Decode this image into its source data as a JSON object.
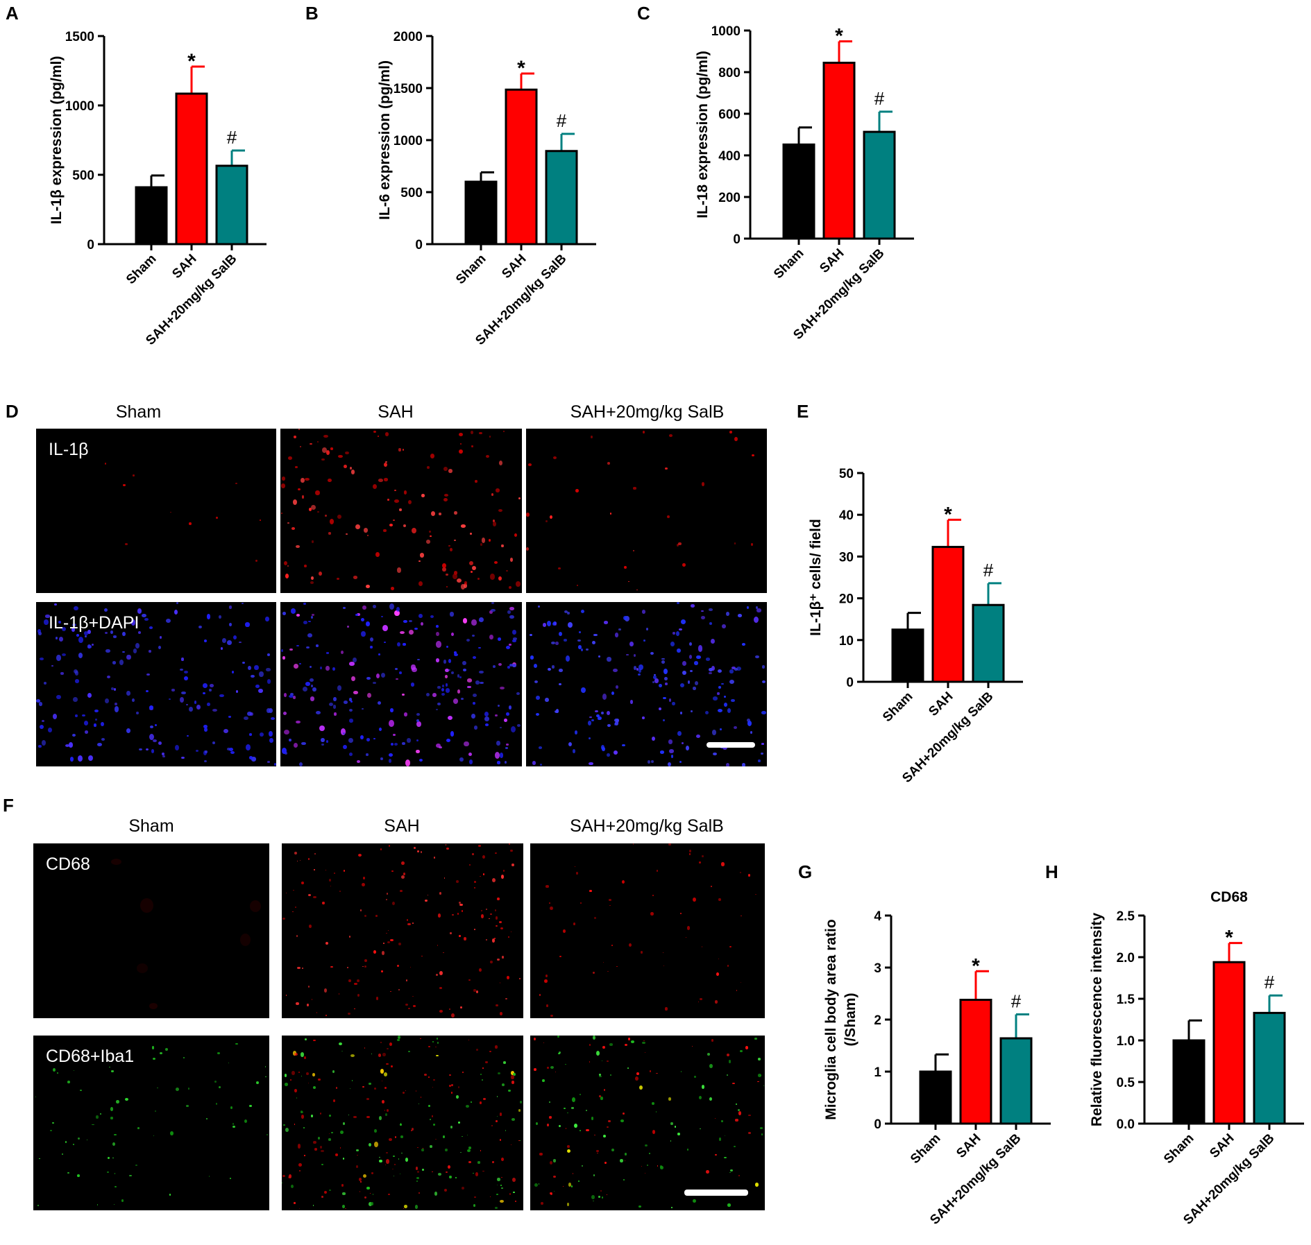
{
  "panel_letters": {
    "A": "A",
    "B": "B",
    "C": "C",
    "D": "D",
    "E": "E",
    "F": "F",
    "G": "G",
    "H": "H"
  },
  "colors": {
    "sham": "#000000",
    "sah": "#ff0000",
    "salb": "#008080",
    "salb_err": "#008080",
    "sah_err": "#ff0000"
  },
  "chart_data": [
    {
      "id": "A",
      "type": "bar",
      "categories": [
        "Sham",
        "SAH",
        "SAH+20mg/kg SalB"
      ],
      "values": [
        410,
        1085,
        565
      ],
      "errors": [
        85,
        195,
        110
      ],
      "ylabel": "IL-1β expression (pg/ml)",
      "ylim": [
        0,
        1500
      ],
      "yticks": [
        0,
        500,
        1000,
        1500
      ],
      "annotations": [
        "",
        "*",
        "#"
      ]
    },
    {
      "id": "B",
      "type": "bar",
      "categories": [
        "Sham",
        "SAH",
        "SAH+20mg/kg SalB"
      ],
      "values": [
        600,
        1485,
        895
      ],
      "errors": [
        90,
        155,
        165
      ],
      "ylabel": "IL-6 expression (pg/ml)",
      "ylim": [
        0,
        2000
      ],
      "yticks": [
        0,
        500,
        1000,
        1500,
        2000
      ],
      "annotations": [
        "",
        "*",
        "#"
      ]
    },
    {
      "id": "C",
      "type": "bar",
      "categories": [
        "Sham",
        "SAH",
        "SAH+20mg/kg SalB"
      ],
      "values": [
        452,
        845,
        513
      ],
      "errors": [
        82,
        103,
        97
      ],
      "ylabel": "IL-18 expression (pg/ml)",
      "ylim": [
        0,
        1000
      ],
      "yticks": [
        0,
        200,
        400,
        600,
        800,
        1000
      ],
      "annotations": [
        "",
        "*",
        "#"
      ]
    },
    {
      "id": "E",
      "type": "bar",
      "categories": [
        "Sham",
        "SAH",
        "SAH+20mg/kg SalB"
      ],
      "values": [
        12.5,
        32.3,
        18.4
      ],
      "errors": [
        4,
        6.5,
        5.2
      ],
      "ylabel": "IL-1β⁺ cells/ field",
      "ylim": [
        0,
        50
      ],
      "yticks": [
        0,
        10,
        20,
        30,
        40,
        50
      ],
      "annotations": [
        "",
        "*",
        "#"
      ]
    },
    {
      "id": "G",
      "type": "bar",
      "categories": [
        "Sham",
        "SAH",
        "SAH+20mg/kg SalB"
      ],
      "values": [
        1.0,
        2.38,
        1.64
      ],
      "errors": [
        0.33,
        0.55,
        0.46
      ],
      "ylabel": "Microglia cell body area ratio",
      "ylabel2": "(/Sham)",
      "ylim": [
        0,
        4
      ],
      "yticks": [
        0,
        1,
        2,
        3,
        4
      ],
      "annotations": [
        "",
        "*",
        "#"
      ]
    },
    {
      "id": "H",
      "type": "bar",
      "title": "CD68",
      "categories": [
        "Sham",
        "SAH",
        "SAH+20mg/kg SalB"
      ],
      "values": [
        1.0,
        1.94,
        1.33
      ],
      "errors": [
        0.24,
        0.23,
        0.21
      ],
      "ylabel": "Relative fluorescence intensity",
      "ylim": [
        0,
        2.5
      ],
      "yticks": [
        0.0,
        0.5,
        1.0,
        1.5,
        2.0,
        2.5
      ],
      "annotations": [
        "",
        "*",
        "#"
      ]
    }
  ],
  "panel_D": {
    "columns": [
      "Sham",
      "SAH",
      "SAH+20mg/kg SalB"
    ],
    "row1_label": "IL-1β",
    "row2_label": "IL-1β+DAPI"
  },
  "panel_F": {
    "columns": [
      "Sham",
      "SAH",
      "SAH+20mg/kg SalB"
    ],
    "row1_label": "CD68",
    "row2_label": "CD68+Iba1"
  }
}
